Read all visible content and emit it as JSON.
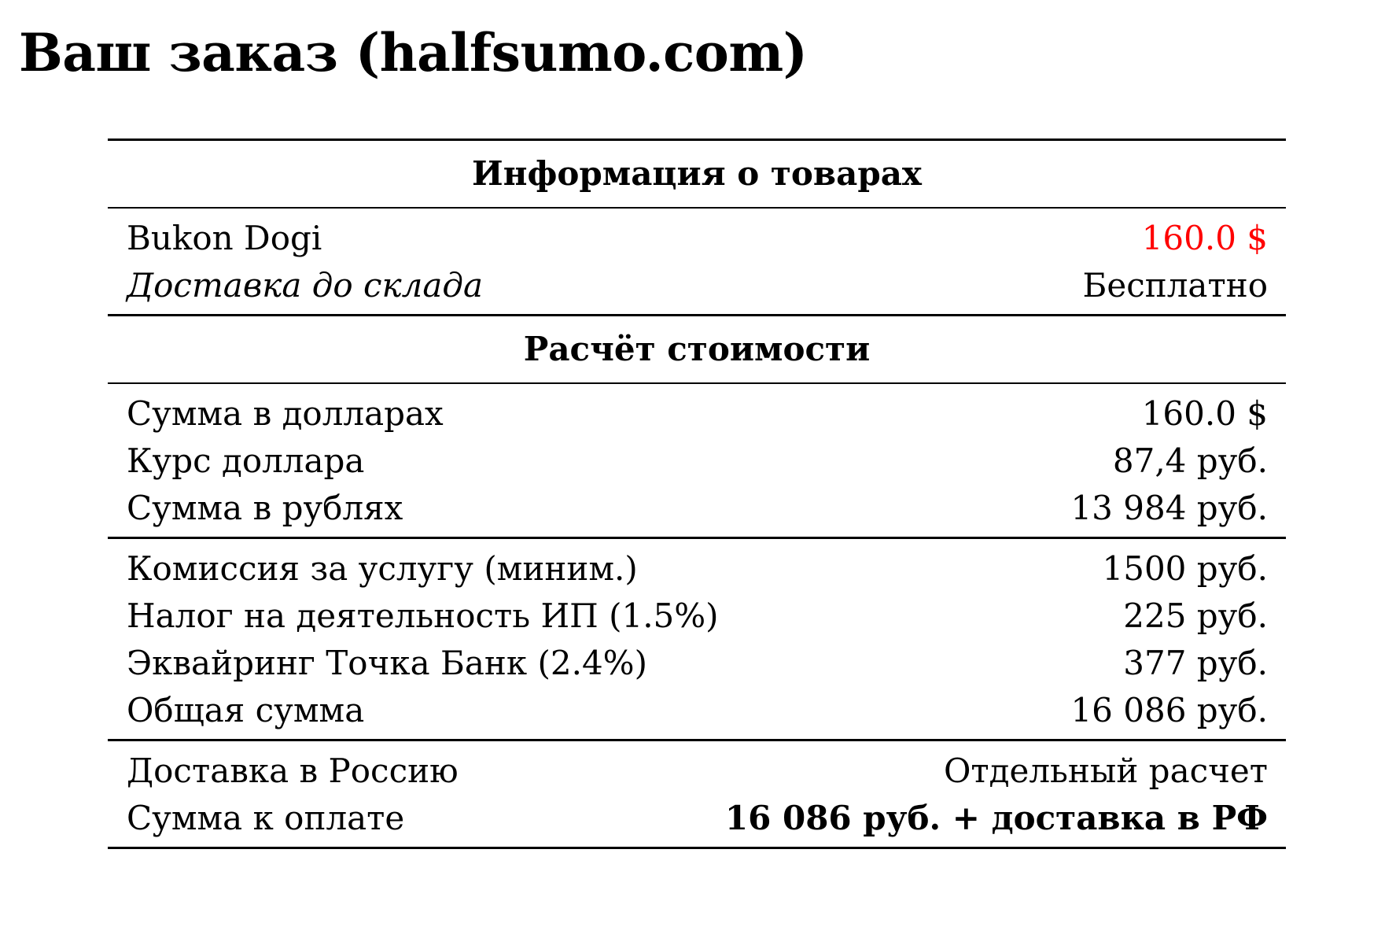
{
  "title": "Ваш заказ (halfsumo.com)",
  "sections": {
    "products_header": "Информация о товарах",
    "products": [
      {
        "label": "Bukon Dogi",
        "value": "160.0 $"
      },
      {
        "label": "Доставка до склада",
        "value": "Бесплатно"
      }
    ],
    "calc_header": "Расчёт стоимости",
    "conversion": [
      {
        "label": "Сумма в долларах",
        "value": "160.0 $"
      },
      {
        "label": "Курс доллара",
        "value": "87,4 руб."
      },
      {
        "label": "Сумма в рублях",
        "value": "13 984 руб."
      }
    ],
    "fees": [
      {
        "label": "Комиссия за услугу (миним.)",
        "value": "1500 руб."
      },
      {
        "label": "Налог на деятельность ИП (1.5%)",
        "value": "225 руб."
      },
      {
        "label": "Эквайринг Точка Банк (2.4%)",
        "value": "377 руб."
      },
      {
        "label": "Общая сумма",
        "value": "16 086 руб."
      }
    ],
    "final": [
      {
        "label": "Доставка в Россию",
        "value": "Отдельный расчет"
      },
      {
        "label": "Сумма к оплате",
        "value": "16 086 руб. + доставка в РФ"
      }
    ]
  },
  "colors": {
    "price_highlight": "#ff0000"
  }
}
